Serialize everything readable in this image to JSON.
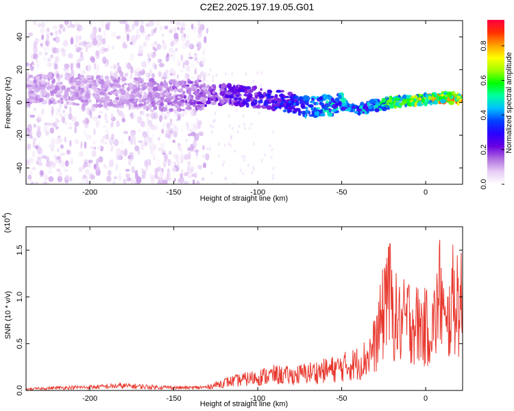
{
  "title": "C2E2.2025.197.19.05.G01",
  "chart_data": [
    {
      "type": "heatmap",
      "xlabel": "Height of straight line (km)",
      "ylabel": "Frequency (Hz)",
      "xlim": [
        -238,
        22
      ],
      "ylim": [
        -50,
        50
      ],
      "xticks": [
        -200,
        -150,
        -100,
        -50,
        0
      ],
      "yticks": [
        -40,
        -20,
        0,
        20,
        40
      ],
      "xtick_labels": [
        "-200",
        "-150",
        "-100",
        "-50",
        "0"
      ],
      "ytick_labels": [
        "-40",
        "-20",
        "0",
        "20",
        "40"
      ],
      "colorbar": {
        "label": "Normalized spectral amplitude",
        "range": [
          0,
          0.95
        ],
        "ticks": [
          0,
          0.2,
          0.4,
          0.6,
          0.8
        ],
        "tick_labels": [
          "0.0",
          "0.2",
          "0.4",
          "0.6",
          "0.8"
        ],
        "colormap": [
          "#ffffff",
          "#e6ccf5",
          "#b070e0",
          "#6a00e0",
          "#2a00ff",
          "#0040ff",
          "#00c0ff",
          "#00ffa0",
          "#00ff00",
          "#a0ff00",
          "#ffff00",
          "#ffa000",
          "#ff3000",
          "#ff0040"
        ]
      },
      "ridge": {
        "x": [
          -215,
          -180,
          -150,
          -130,
          -110,
          -90,
          -80,
          -70,
          -60,
          -50,
          -40,
          -30,
          -20,
          -10,
          0,
          10,
          22
        ],
        "y": [
          8,
          6,
          4,
          5,
          4,
          2,
          0,
          -3,
          -2,
          -1,
          -4,
          -2,
          0,
          1,
          2,
          3,
          2
        ],
        "amplitude": [
          0.12,
          0.12,
          0.15,
          0.2,
          0.25,
          0.3,
          0.35,
          0.4,
          0.45,
          0.45,
          0.4,
          0.5,
          0.6,
          0.65,
          0.7,
          0.75,
          0.8
        ]
      },
      "scatter_cutoff_x": -130
    },
    {
      "type": "line",
      "xlabel": "Height of straight line (km)",
      "ylabel": "SNR (10 * v/v)",
      "multiplier_label": "(x10",
      "multiplier_exp": "4",
      "xlim": [
        -238,
        22
      ],
      "ylim": [
        0,
        1.75
      ],
      "xticks": [
        -200,
        -150,
        -100,
        -50,
        0
      ],
      "yticks": [
        0,
        0.5,
        1.0,
        1.5
      ],
      "xtick_labels": [
        "-200",
        "-150",
        "-100",
        "-50",
        "0"
      ],
      "ytick_labels": [
        "0.0",
        "0.5",
        "1.0",
        "1.5"
      ],
      "color": "#e8382e",
      "series": [
        {
          "x": [
            -238,
            -220,
            -200,
            -180,
            -160,
            -140,
            -130,
            -120,
            -110,
            -100,
            -90,
            -80,
            -70,
            -60,
            -50,
            -40,
            -35,
            -30,
            -25,
            -23,
            -20,
            -15,
            -10,
            -5,
            0,
            5,
            9,
            12,
            15,
            18,
            22
          ],
          "y": [
            0.02,
            0.04,
            0.05,
            0.07,
            0.05,
            0.04,
            0.05,
            0.12,
            0.16,
            0.2,
            0.24,
            0.22,
            0.27,
            0.3,
            0.35,
            0.42,
            0.5,
            0.7,
            1.2,
            1.75,
            1.2,
            1.0,
            1.1,
            1.0,
            0.95,
            1.0,
            1.55,
            0.8,
            1.3,
            1.45,
            1.25
          ]
        }
      ]
    }
  ]
}
